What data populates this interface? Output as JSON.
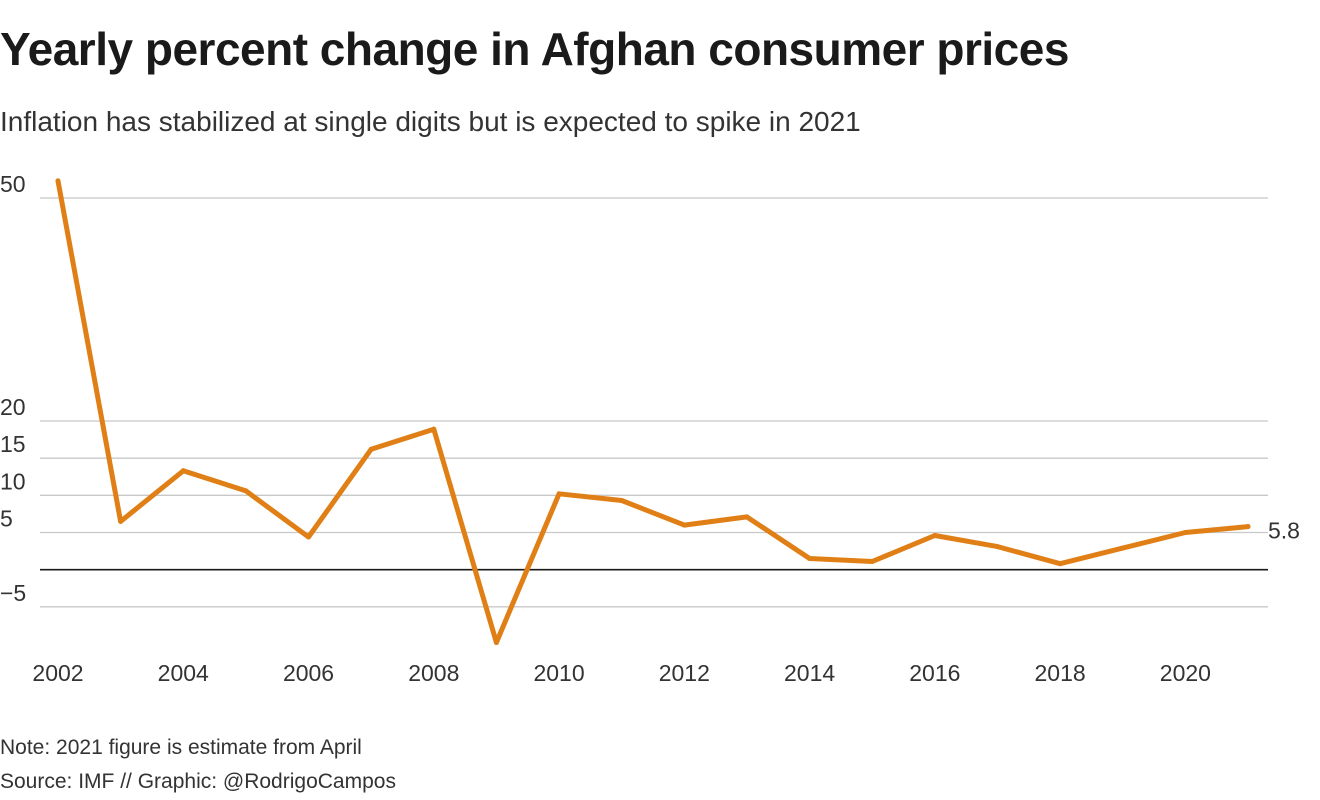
{
  "title": "Yearly percent change in Afghan consumer prices",
  "subtitle": "Inflation has stabilized at single digits but is expected to spike in 2021",
  "note": "Note: 2021 figure is estimate from April",
  "source": "Source: IMF // Graphic: @RodrigoCampos",
  "colors": {
    "line": "#e07f16",
    "grid": "#c8c8c8",
    "zero": "#1a1a1a"
  },
  "chart_data": {
    "type": "line",
    "x": [
      2002,
      2003,
      2004,
      2005,
      2006,
      2007,
      2008,
      2009,
      2010,
      2011,
      2012,
      2013,
      2014,
      2015,
      2016,
      2017,
      2018,
      2019,
      2020,
      2021
    ],
    "series": [
      {
        "values": [
          52.3,
          6.5,
          13.3,
          10.6,
          4.4,
          16.2,
          18.9,
          -9.8,
          10.2,
          9.3,
          6.0,
          7.1,
          1.5,
          1.1,
          4.6,
          3.1,
          0.8,
          2.9,
          5.0,
          5.8
        ]
      }
    ],
    "end_label": "5.8",
    "y_ticks": [
      -5,
      5,
      10,
      15,
      20,
      50
    ],
    "y_tick_labels": [
      "−5",
      "5",
      "10",
      "15",
      "20",
      "50"
    ],
    "x_ticks": [
      2002,
      2004,
      2006,
      2008,
      2010,
      2012,
      2014,
      2016,
      2018,
      2020
    ],
    "x_tick_labels": [
      "2002",
      "2004",
      "2006",
      "2008",
      "2010",
      "2012",
      "2014",
      "2016",
      "2018",
      "2020"
    ],
    "ylim": [
      -10,
      53
    ],
    "xlim": [
      2002,
      2021
    ],
    "grid": true,
    "zero_line": true,
    "xlabel": "",
    "ylabel": ""
  }
}
